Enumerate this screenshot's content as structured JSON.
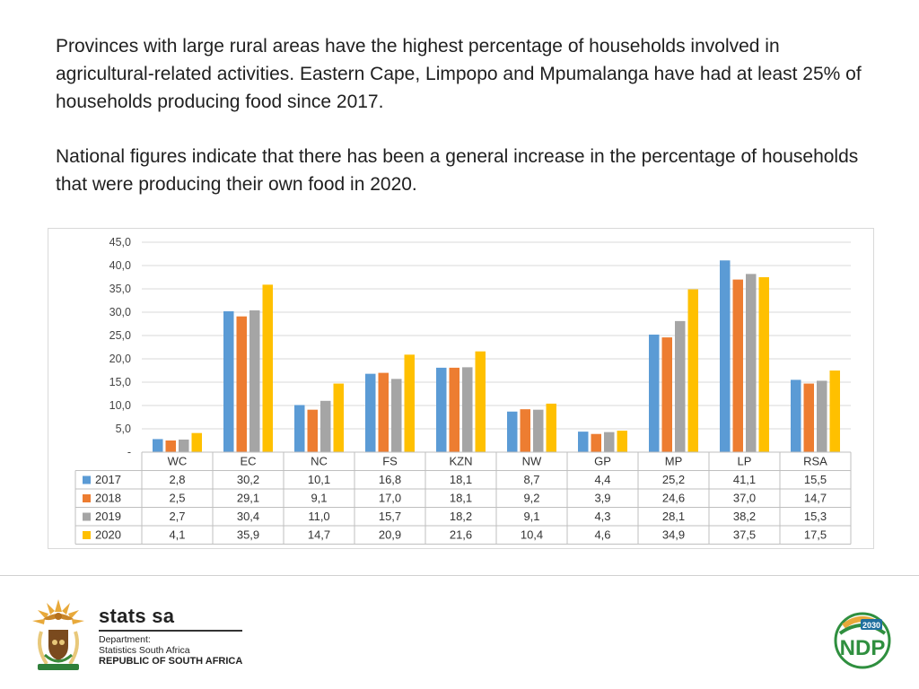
{
  "text": {
    "paragraph1": "Provinces with large rural areas have the highest percentage of households involved in agricultural-related activities. Eastern Cape, Limpopo and Mpumalanga have had at least 25% of households producing food since 2017.",
    "paragraph2": "National figures indicate that there has been a general increase in the percentage of households that were producing their own food in 2020."
  },
  "chart_data": {
    "type": "bar",
    "categories": [
      "WC",
      "EC",
      "NC",
      "FS",
      "KZN",
      "NW",
      "GP",
      "MP",
      "LP",
      "RSA"
    ],
    "series": [
      {
        "name": "2017",
        "color": "#5b9bd5",
        "values": [
          2.8,
          30.2,
          10.1,
          16.8,
          18.1,
          8.7,
          4.4,
          25.2,
          41.1,
          15.5
        ],
        "labels": [
          "2,8",
          "30,2",
          "10,1",
          "16,8",
          "18,1",
          "8,7",
          "4,4",
          "25,2",
          "41,1",
          "15,5"
        ]
      },
      {
        "name": "2018",
        "color": "#ed7d31",
        "values": [
          2.5,
          29.1,
          9.1,
          17.0,
          18.1,
          9.2,
          3.9,
          24.6,
          37.0,
          14.7
        ],
        "labels": [
          "2,5",
          "29,1",
          "9,1",
          "17,0",
          "18,1",
          "9,2",
          "3,9",
          "24,6",
          "37,0",
          "14,7"
        ]
      },
      {
        "name": "2019",
        "color": "#a5a5a5",
        "values": [
          2.7,
          30.4,
          11.0,
          15.7,
          18.2,
          9.1,
          4.3,
          28.1,
          38.2,
          15.3
        ],
        "labels": [
          "2,7",
          "30,4",
          "11,0",
          "15,7",
          "18,2",
          "9,1",
          "4,3",
          "28,1",
          "38,2",
          "15,3"
        ]
      },
      {
        "name": "2020",
        "color": "#ffc000",
        "values": [
          4.1,
          35.9,
          14.7,
          20.9,
          21.6,
          10.4,
          4.6,
          34.9,
          37.5,
          17.5
        ],
        "labels": [
          "4,1",
          "35,9",
          "14,7",
          "20,9",
          "21,6",
          "10,4",
          "4,6",
          "34,9",
          "37,5",
          "17,5"
        ]
      }
    ],
    "ylim": [
      0,
      45
    ],
    "yticks": [
      0,
      5,
      10,
      15,
      20,
      25,
      30,
      35,
      40,
      45
    ],
    "ytick_labels": [
      "-",
      "5,0",
      "10,0",
      "15,0",
      "20,0",
      "25,0",
      "30,0",
      "35,0",
      "40,0",
      "45,0"
    ],
    "grid": true,
    "legend": "data-table-below"
  },
  "footer": {
    "brand": "stats sa",
    "dept_line1": "Department:",
    "dept_line2": "Statistics South Africa",
    "dept_line3": "REPUBLIC OF SOUTH AFRICA",
    "ndp_text": "NDP",
    "ndp_year": "2030"
  }
}
